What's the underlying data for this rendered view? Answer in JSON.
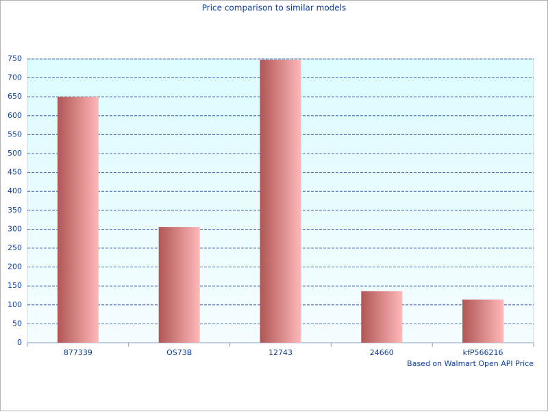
{
  "chart_data": {
    "type": "bar",
    "title": "Price comparison to similar models",
    "note": "Based on Walmart Open API Price",
    "categories": [
      "877339",
      "OS73B",
      "12743",
      "24660",
      "kfP566216"
    ],
    "values": [
      650,
      306,
      748,
      136,
      114
    ],
    "color": [
      "#b05656",
      "#ffb8b8"
    ],
    "ylim": [
      0,
      750
    ],
    "yticks": [
      0,
      50,
      100,
      150,
      200,
      250,
      300,
      350,
      400,
      450,
      500,
      550,
      600,
      650,
      700,
      750
    ],
    "grid": true
  }
}
